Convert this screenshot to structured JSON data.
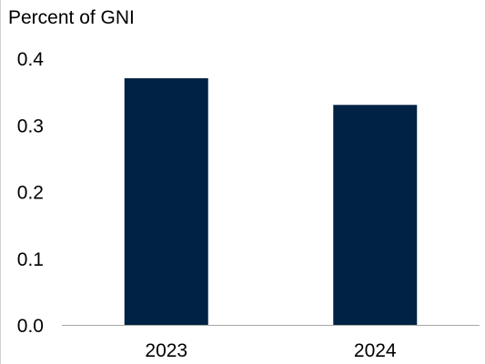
{
  "chart_data": {
    "type": "bar",
    "title": "",
    "xlabel": "",
    "ylabel": "Percent of GNI",
    "categories": [
      "2023",
      "2024"
    ],
    "values": [
      0.37,
      0.33
    ],
    "ylim": [
      0,
      0.4
    ],
    "yticks": [
      "0.0",
      "0.1",
      "0.2",
      "0.3",
      "0.4"
    ],
    "grid": false,
    "legend": "none",
    "bar_color": "#002244",
    "axis_color": "#a6a6a6"
  }
}
